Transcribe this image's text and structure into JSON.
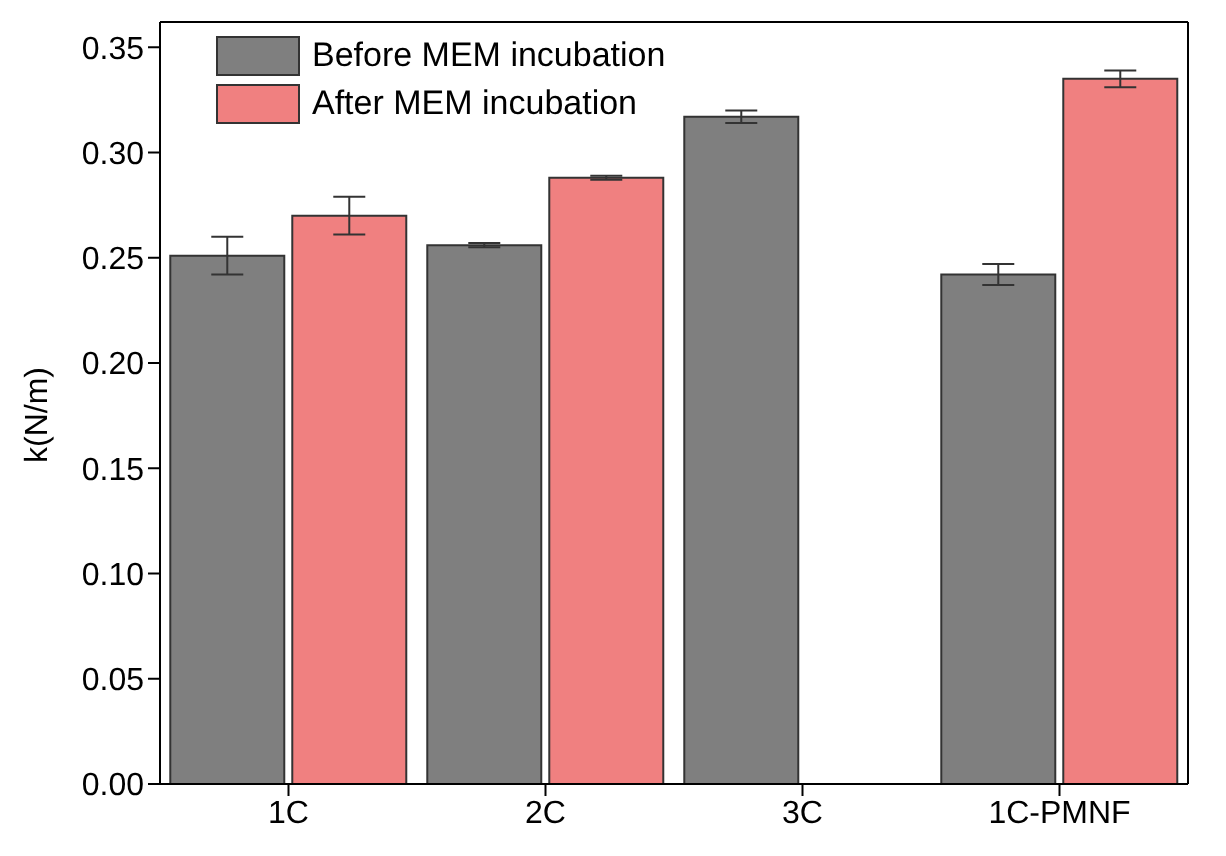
{
  "chart_data": {
    "type": "bar",
    "ylabel": "k(N/m)",
    "categories": [
      "1C",
      "2C",
      "3C",
      "1C-PMNF"
    ],
    "series": [
      {
        "name": "Before MEM incubation",
        "color": "#7f7f7f",
        "values": [
          0.251,
          0.256,
          0.317,
          0.242
        ],
        "errors": [
          0.009,
          0.001,
          0.003,
          0.005
        ]
      },
      {
        "name": "After MEM incubation",
        "color": "#f08080",
        "values": [
          0.27,
          0.288,
          null,
          0.335
        ],
        "errors": [
          0.009,
          0.001,
          null,
          0.004
        ]
      }
    ],
    "ylim": [
      0,
      0.362
    ],
    "yticks": [
      {
        "value": 0,
        "label": "0.00"
      },
      {
        "value": 0.05,
        "label": "0.05"
      },
      {
        "value": 0.1,
        "label": "0.10"
      },
      {
        "value": 0.15,
        "label": "0.15"
      },
      {
        "value": 0.2,
        "label": "0.20"
      },
      {
        "value": 0.25,
        "label": "0.25"
      },
      {
        "value": 0.3,
        "label": "0.30"
      },
      {
        "value": 0.35,
        "label": "0.35"
      }
    ],
    "legend": "top left",
    "grid": false
  }
}
